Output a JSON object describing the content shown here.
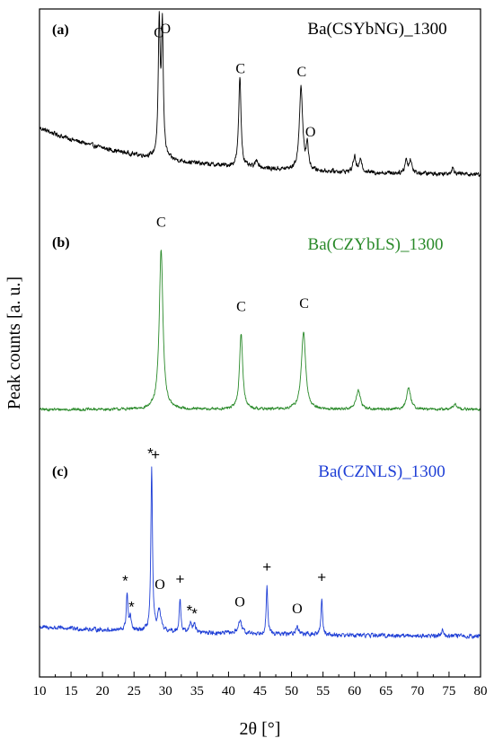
{
  "chart_data": {
    "type": "line",
    "xlabel": "2θ [°]",
    "ylabel": "Peak counts [a. u.]",
    "xlim": [
      10,
      80
    ],
    "xticks": [
      10,
      15,
      20,
      25,
      30,
      35,
      40,
      45,
      50,
      55,
      60,
      65,
      70,
      75,
      80
    ],
    "y_ticks_shown": false,
    "panels": [
      {
        "label": "(a)",
        "title": "Ba(CSYbNG)_1300",
        "color": "#000000",
        "baseline": {
          "start": 0.36,
          "end": 0.03,
          "decay": 0.055
        },
        "noise": 0.022,
        "peaks": [
          {
            "x": 29.0,
            "h": 0.92,
            "w": 0.18
          },
          {
            "x": 29.5,
            "h": 0.9,
            "w": 0.18
          },
          {
            "x": 41.8,
            "h": 0.63,
            "w": 0.22
          },
          {
            "x": 44.5,
            "h": 0.05,
            "w": 0.3
          },
          {
            "x": 51.5,
            "h": 0.59,
            "w": 0.3
          },
          {
            "x": 52.5,
            "h": 0.18,
            "w": 0.2
          },
          {
            "x": 60.0,
            "h": 0.11,
            "w": 0.25
          },
          {
            "x": 61.0,
            "h": 0.09,
            "w": 0.25
          },
          {
            "x": 68.2,
            "h": 0.09,
            "w": 0.25
          },
          {
            "x": 68.9,
            "h": 0.09,
            "w": 0.25
          },
          {
            "x": 75.6,
            "h": 0.04,
            "w": 0.3
          }
        ],
        "annotations": [
          {
            "text": "C",
            "x": 28.9,
            "y": 0.99
          },
          {
            "text": "O",
            "x": 30.0,
            "y": 1.02
          },
          {
            "text": "C",
            "x": 41.9,
            "y": 0.74
          },
          {
            "text": "C",
            "x": 51.6,
            "y": 0.72
          },
          {
            "text": "O",
            "x": 53.0,
            "y": 0.3
          }
        ]
      },
      {
        "label": "(b)",
        "title": "Ba(CZYbLS)_1300",
        "color": "#2a8a2a",
        "baseline": {
          "start": 0.02,
          "end": 0.02,
          "decay": 0.1
        },
        "noise": 0.012,
        "peaks": [
          {
            "x": 29.3,
            "h": 0.93,
            "w": 0.35
          },
          {
            "x": 42.0,
            "h": 0.44,
            "w": 0.3
          },
          {
            "x": 51.9,
            "h": 0.45,
            "w": 0.4
          },
          {
            "x": 60.6,
            "h": 0.11,
            "w": 0.4
          },
          {
            "x": 68.6,
            "h": 0.12,
            "w": 0.4
          },
          {
            "x": 76.0,
            "h": 0.03,
            "w": 0.4
          }
        ],
        "annotations": [
          {
            "text": "C",
            "x": 29.3,
            "y": 1.08
          },
          {
            "text": "C",
            "x": 42.0,
            "y": 0.59
          },
          {
            "text": "C",
            "x": 52.0,
            "y": 0.61
          }
        ]
      },
      {
        "label": "(c)",
        "title": "Ba(CZNLS)_1300",
        "color": "#1f3fd6",
        "baseline": {
          "start": 0.06,
          "end": 0.0,
          "decay": 0.03
        },
        "noise": 0.018,
        "peaks": [
          {
            "x": 23.9,
            "h": 0.22,
            "w": 0.15
          },
          {
            "x": 24.4,
            "h": 0.08,
            "w": 0.15
          },
          {
            "x": 27.8,
            "h": 0.95,
            "w": 0.15
          },
          {
            "x": 29.0,
            "h": 0.12,
            "w": 0.3
          },
          {
            "x": 32.3,
            "h": 0.2,
            "w": 0.15
          },
          {
            "x": 34.0,
            "h": 0.06,
            "w": 0.2
          },
          {
            "x": 34.6,
            "h": 0.05,
            "w": 0.2
          },
          {
            "x": 41.8,
            "h": 0.07,
            "w": 0.35
          },
          {
            "x": 46.1,
            "h": 0.27,
            "w": 0.15
          },
          {
            "x": 50.9,
            "h": 0.04,
            "w": 0.35
          },
          {
            "x": 54.8,
            "h": 0.21,
            "w": 0.15
          },
          {
            "x": 74.0,
            "h": 0.04,
            "w": 0.2
          }
        ],
        "annotations": [
          {
            "text": "*",
            "x": 23.6,
            "y": 0.33
          },
          {
            "text": "*",
            "x": 24.6,
            "y": 0.18
          },
          {
            "text": "O",
            "x": 29.1,
            "y": 0.28
          },
          {
            "text": "*",
            "x": 27.6,
            "y": 1.07
          },
          {
            "text": "+",
            "x": 28.4,
            "y": 1.03
          },
          {
            "text": "+",
            "x": 32.3,
            "y": 0.31
          },
          {
            "text": "*",
            "x": 33.8,
            "y": 0.16
          },
          {
            "text": "*",
            "x": 34.6,
            "y": 0.14
          },
          {
            "text": "O",
            "x": 41.8,
            "y": 0.18
          },
          {
            "text": "+",
            "x": 46.1,
            "y": 0.38
          },
          {
            "text": "O",
            "x": 50.9,
            "y": 0.14
          },
          {
            "text": "+",
            "x": 54.8,
            "y": 0.32
          }
        ]
      }
    ]
  }
}
